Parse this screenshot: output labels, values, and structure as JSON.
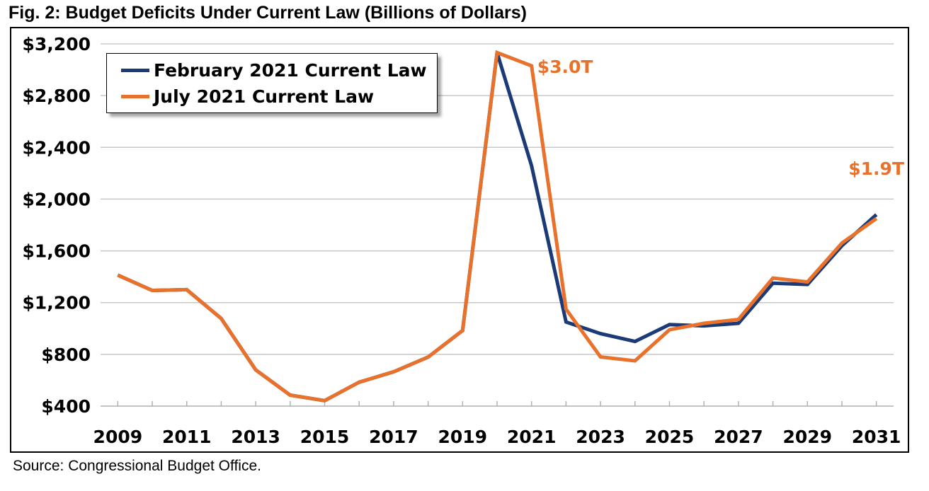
{
  "figure": {
    "title": "Fig. 2: Budget Deficits Under Current Law (Billions of Dollars)",
    "source": "Source: Congressional Budget Office."
  },
  "colors": {
    "february": "#1a3a78",
    "july": "#e8712b",
    "grid": "#c8c8c8",
    "annotation": "#e8712b"
  },
  "chart_data": {
    "type": "line",
    "title": "Fig. 2: Budget Deficits Under Current Law (Billions of Dollars)",
    "xlabel": "",
    "ylabel": "",
    "x": [
      2009,
      2010,
      2011,
      2012,
      2013,
      2014,
      2015,
      2016,
      2017,
      2018,
      2019,
      2020,
      2021,
      2022,
      2023,
      2024,
      2025,
      2026,
      2027,
      2028,
      2029,
      2030,
      2031
    ],
    "xlim": [
      2008.5,
      2031.5
    ],
    "ylim": [
      400,
      3200
    ],
    "x_tick_labels": [
      "2009",
      "2011",
      "2013",
      "2015",
      "2017",
      "2019",
      "2021",
      "2023",
      "2025",
      "2027",
      "2029",
      "2031"
    ],
    "y_ticks": [
      400,
      800,
      1200,
      1600,
      2000,
      2400,
      2800,
      3200
    ],
    "y_tick_labels": [
      "$400",
      "$800",
      "$1,200",
      "$1,600",
      "$2,000",
      "$2,400",
      "$2,800",
      "$3,200"
    ],
    "grid": "horizontal",
    "legend_position": "top-left",
    "series": [
      {
        "name": "February 2021 Current Law",
        "color": "#1a3a78",
        "values": [
          1413,
          1294,
          1300,
          1077,
          680,
          485,
          442,
          585,
          665,
          779,
          984,
          3132,
          2258,
          1050,
          960,
          900,
          1030,
          1020,
          1040,
          1350,
          1340,
          1640,
          1880
        ]
      },
      {
        "name": "July 2021 Current Law",
        "color": "#e8712b",
        "values": [
          1413,
          1294,
          1300,
          1077,
          680,
          485,
          442,
          585,
          665,
          779,
          984,
          3132,
          3030,
          1150,
          780,
          750,
          990,
          1040,
          1070,
          1390,
          1360,
          1660,
          1850
        ]
      }
    ],
    "annotations": [
      {
        "text": "$3.0T",
        "x": 2021,
        "y": 3030,
        "color": "#e8712b"
      },
      {
        "text": "$1.9T",
        "x": 2031,
        "y": 1850,
        "color": "#e8712b"
      }
    ]
  }
}
